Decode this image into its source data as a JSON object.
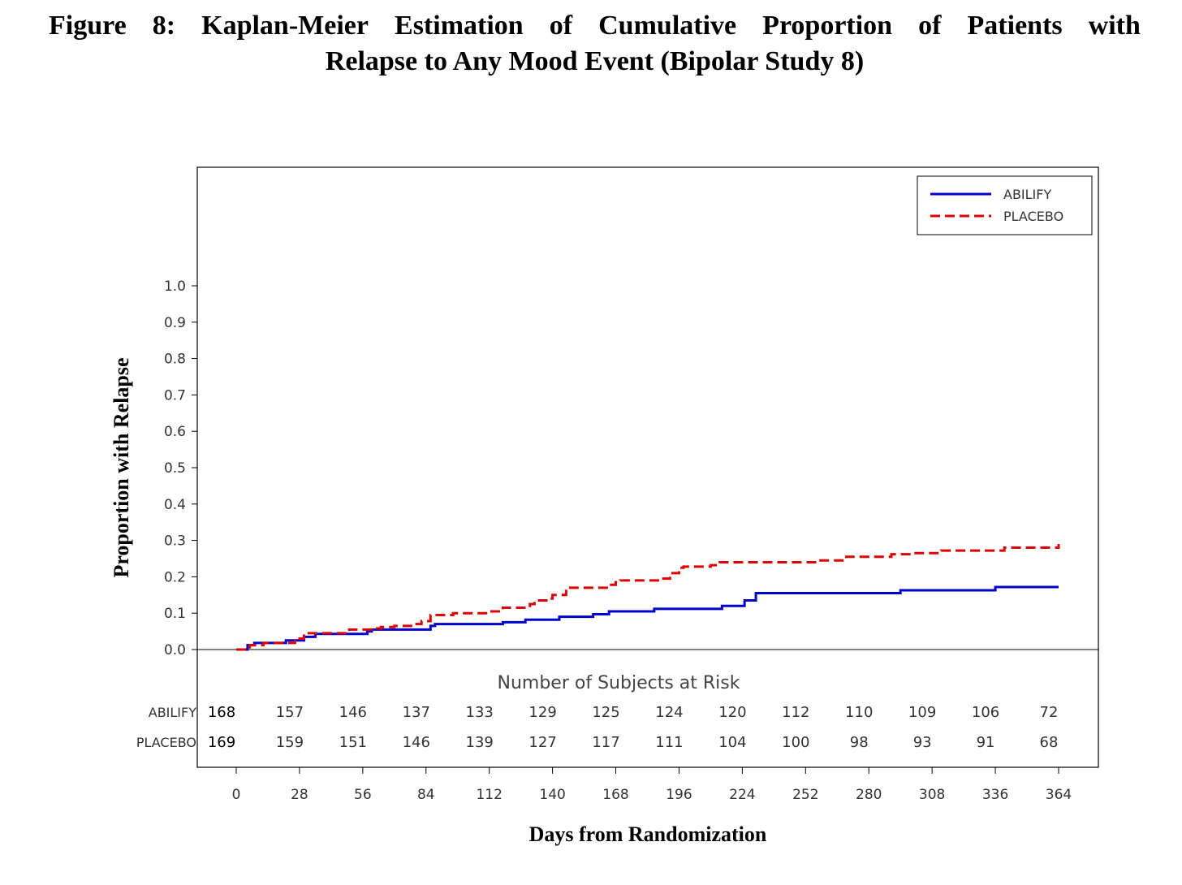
{
  "title_words": [
    "Figure",
    "8:",
    "Kaplan-Meier",
    "Estimation",
    "of",
    "Cumulative",
    "Proportion",
    "of",
    "Patients",
    "with"
  ],
  "title_line2": "Relapse to Any Mood Event (Bipolar Study 8)",
  "chart_data": {
    "type": "line",
    "title": "Figure 8: Kaplan-Meier Estimation of Cumulative Proportion of Patients with Relapse to Any Mood Event (Bipolar Study 8)",
    "xlabel": "Days from Randomization",
    "ylabel": "Proportion with Relapse",
    "xlim": [
      -7,
      378
    ],
    "ylim": [
      0,
      1.0
    ],
    "x_ticks": [
      0,
      28,
      56,
      84,
      112,
      140,
      168,
      196,
      224,
      252,
      280,
      308,
      336,
      364
    ],
    "y_ticks": [
      "0.0",
      "0.1",
      "0.2",
      "0.3",
      "0.4",
      "0.5",
      "0.6",
      "0.7",
      "0.8",
      "0.9",
      "1.0"
    ],
    "legend": {
      "position": "top-right",
      "entries": [
        "ABILIFY",
        "PLACEBO"
      ]
    },
    "grid": false,
    "series": [
      {
        "name": "ABILIFY",
        "color": "#0000cc",
        "style": "solid",
        "x": [
          0,
          5,
          8,
          20,
          22,
          25,
          30,
          35,
          58,
          60,
          86,
          88,
          118,
          128,
          143,
          158,
          165,
          185,
          215,
          225,
          230,
          294,
          336,
          364
        ],
        "y": [
          0,
          0.012,
          0.018,
          0.018,
          0.025,
          0.025,
          0.035,
          0.043,
          0.05,
          0.055,
          0.065,
          0.07,
          0.075,
          0.082,
          0.09,
          0.097,
          0.105,
          0.112,
          0.12,
          0.135,
          0.155,
          0.163,
          0.172,
          0.172
        ]
      },
      {
        "name": "PLACEBO",
        "color": "#dd0000",
        "style": "dashed",
        "x": [
          0,
          6,
          12,
          22,
          26,
          28,
          30,
          50,
          60,
          64,
          70,
          78,
          82,
          86,
          96,
          112,
          118,
          130,
          132,
          138,
          140,
          146,
          152,
          164,
          168,
          170,
          186,
          188,
          192,
          196,
          198,
          210,
          214,
          244,
          258,
          270,
          290,
          300,
          312,
          336,
          340,
          364
        ],
        "y": [
          0,
          0.012,
          0.018,
          0.018,
          0.024,
          0.03,
          0.045,
          0.055,
          0.058,
          0.062,
          0.065,
          0.07,
          0.078,
          0.095,
          0.1,
          0.105,
          0.115,
          0.125,
          0.135,
          0.14,
          0.15,
          0.17,
          0.17,
          0.178,
          0.185,
          0.19,
          0.19,
          0.195,
          0.21,
          0.225,
          0.228,
          0.232,
          0.24,
          0.24,
          0.245,
          0.255,
          0.262,
          0.265,
          0.272,
          0.272,
          0.28,
          0.29
        ]
      }
    ],
    "risk_table": {
      "title": "Number of Subjects at Risk",
      "x": [
        0,
        28,
        56,
        84,
        112,
        140,
        168,
        196,
        224,
        252,
        280,
        308,
        336,
        364
      ],
      "rows": [
        {
          "label": "ABILIFY",
          "values": [
            "168",
            "157",
            "146",
            "137",
            "133",
            "129",
            "125",
            "124",
            "120",
            "112",
            "110",
            "109",
            "106",
            "72"
          ]
        },
        {
          "label": "PLACEBO",
          "values": [
            "169",
            "159",
            "151",
            "146",
            "139",
            "127",
            "117",
            "111",
            "104",
            "100",
            "98",
            "93",
            "91",
            "68"
          ]
        }
      ]
    }
  }
}
